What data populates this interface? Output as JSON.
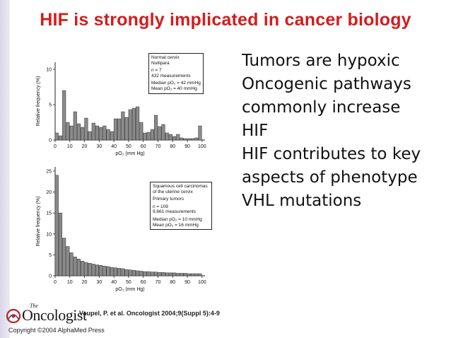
{
  "slide": {
    "title": "HIF is strongly implicated in cancer biology",
    "bullets": [
      [
        "Tumors are hypoxic"
      ],
      [
        "Oncogenic pathways",
        "commonly increase",
        "HIF"
      ],
      [
        "HIF contributes to key",
        "aspects of phenotype"
      ],
      [
        "VHL mutations"
      ]
    ],
    "citation": "Vaupel, P. et al. Oncologist 2004;9(Suppl 5):4-9",
    "copyright": "Copyright ©2004 AlphaMed Press",
    "logo_text": "Oncologist",
    "logo_the": "The"
  },
  "chart_data": [
    {
      "type": "bar",
      "ylabel": "Relative frequency (%)",
      "xlabel": "pO₂ (mm Hg)",
      "ylim": [
        0,
        11
      ],
      "yticks": [
        0,
        5,
        10
      ],
      "xticks": [
        0,
        10,
        20,
        30,
        40,
        50,
        60,
        70,
        80,
        90,
        100
      ],
      "bin_width": 2.5,
      "values": [
        1.0,
        0.6,
        7.0,
        2.5,
        2.0,
        4.0,
        2.3,
        1.8,
        3.1,
        1.2,
        2.4,
        2.0,
        1.8,
        2.0,
        1.5,
        1.2,
        3.0,
        3.0,
        4.0,
        3.2,
        4.3,
        4.5,
        4.7,
        2.5,
        1.0,
        1.1,
        1.5,
        3.5,
        1.9,
        2.2,
        1.0,
        0.8,
        0.5,
        0.8,
        0.3,
        0.2,
        0.2,
        0.2,
        0.3,
        2.0
      ],
      "legend": {
        "lines": [
          "Normal cervix",
          "Nullipara",
          "",
          "n = 7",
          "432 measurements",
          "",
          "Median pO₂ = 42 mmHg",
          "Mean pO₂ = 40 mmHg"
        ]
      }
    },
    {
      "type": "bar",
      "ylabel": "Relative frequency (%)",
      "xlabel": "pO₂ (mm Hg)",
      "ylim": [
        0,
        26
      ],
      "yticks": [
        0,
        5,
        10,
        15,
        20,
        25
      ],
      "xticks": [
        0,
        10,
        20,
        30,
        40,
        50,
        60,
        70,
        80,
        90,
        100
      ],
      "bin_width": 2.5,
      "values": [
        24.0,
        15.0,
        9.0,
        7.0,
        5.5,
        4.5,
        4.0,
        3.5,
        3.2,
        3.0,
        2.8,
        2.6,
        2.5,
        2.3,
        2.2,
        2.0,
        1.9,
        1.8,
        1.7,
        1.5,
        1.4,
        1.3,
        1.2,
        1.1,
        1.0,
        1.0,
        0.9,
        0.9,
        0.8,
        0.8,
        0.7,
        0.7,
        0.7,
        0.6,
        0.6,
        0.6,
        0.5,
        0.5,
        0.5,
        0.5
      ],
      "legend": {
        "lines": [
          "Squamous cell carcinomas",
          "of the uterine cervix",
          "",
          "Primary tumors",
          "",
          "n = 109",
          "9,661 measurements",
          "",
          "Median pO₂ = 10 mmHg",
          "Mean pO₂ = 16 mmHg"
        ]
      }
    }
  ]
}
